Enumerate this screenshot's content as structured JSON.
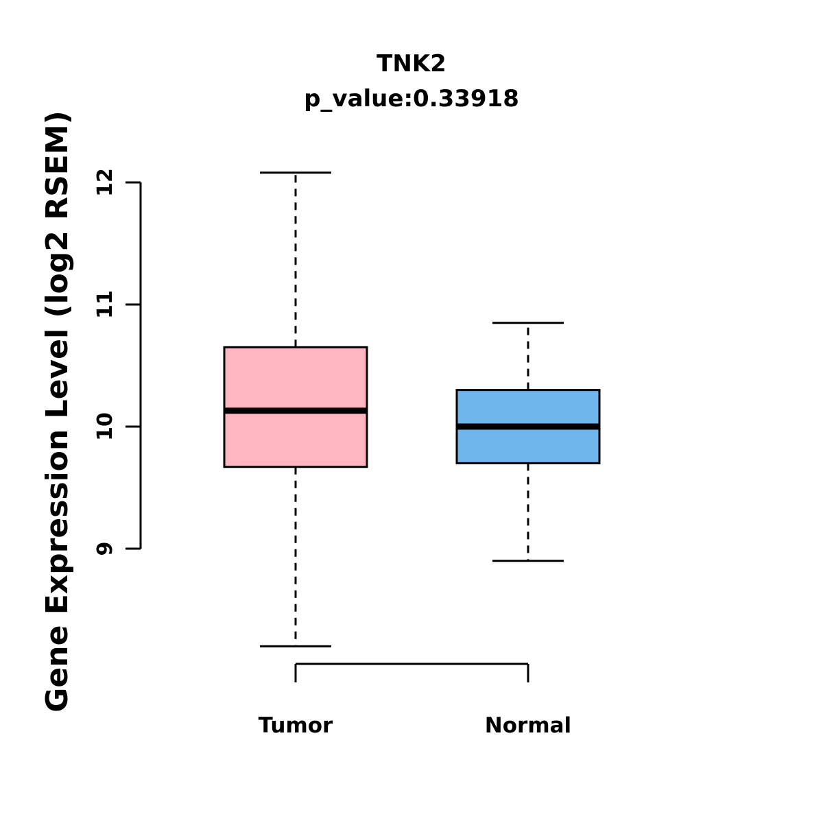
{
  "title": "TNK2",
  "subtitle": "p_value:0.33918",
  "ylabel": "Gene Expression Level (log2 RSEM)",
  "chart_data": {
    "type": "boxplot",
    "title": "TNK2",
    "subtitle": "p_value:0.33918",
    "ylabel": "Gene Expression Level (log2 RSEM)",
    "xlabel": "",
    "categories": [
      "Tumor",
      "Normal"
    ],
    "yticks": [
      9,
      10,
      11,
      12
    ],
    "ylim": [
      8.1,
      12.2
    ],
    "grid": false,
    "legend": "none",
    "series": [
      {
        "name": "Tumor",
        "whisker_low": 8.2,
        "q1": 9.67,
        "median": 10.13,
        "q3": 10.65,
        "whisker_high": 12.08,
        "color": "#FFB6C1",
        "stroke": "#000000"
      },
      {
        "name": "Normal",
        "whisker_low": 8.9,
        "q1": 9.7,
        "median": 10.0,
        "q3": 10.3,
        "whisker_high": 10.85,
        "color": "#6EB6EC",
        "stroke": "#000000"
      }
    ]
  }
}
